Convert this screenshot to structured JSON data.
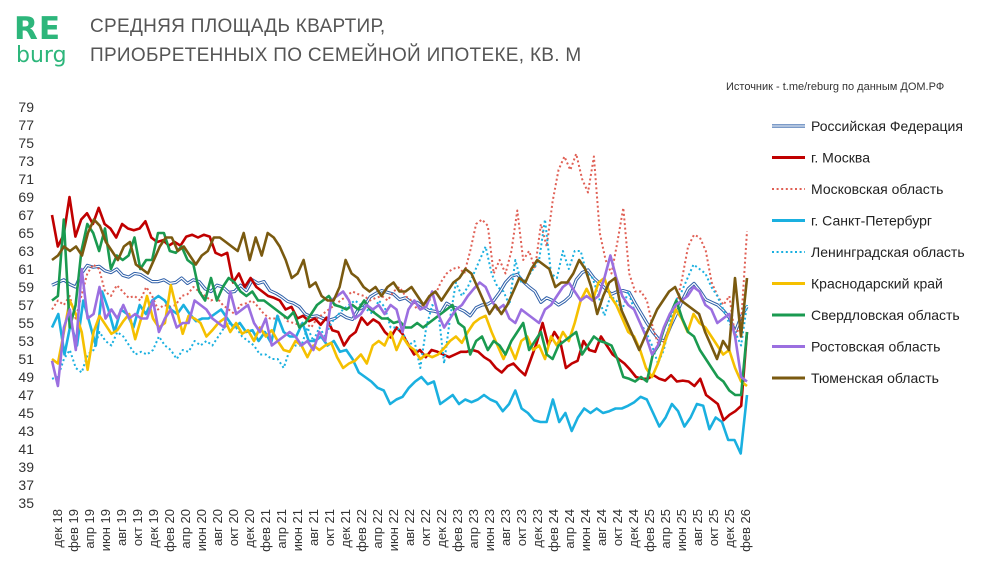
{
  "logo": {
    "line1": "RE",
    "line2": "burg"
  },
  "title": {
    "line1": "СРЕДНЯЯ ПЛОЩАДЬ КВАРТИР,",
    "line2": "ПРИОБРЕТЕННЫХ ПО СЕМЕЙНОЙ ИПОТЕКЕ, КВ. М"
  },
  "source": "Источник - t.me/reburg по данным ДОМ.РФ",
  "colors": {
    "brand": "#2db67b"
  },
  "chart_data": {
    "type": "line",
    "title": "СРЕДНЯЯ ПЛОЩАДЬ КВАРТИР, ПРИОБРЕТЕННЫХ ПО СЕМЕЙНОЙ ИПОТЕКЕ, КВ. М",
    "xlabel": "",
    "ylabel": "",
    "ylim": [
      35,
      79
    ],
    "y_ticks": [
      35,
      37,
      39,
      41,
      43,
      45,
      47,
      49,
      51,
      53,
      55,
      57,
      59,
      61,
      63,
      65,
      67,
      69,
      71,
      73,
      75,
      77,
      79
    ],
    "grid": false,
    "legend_position": "right",
    "x_labels": [
      "дек 18",
      "фев 19",
      "апр 19",
      "июн 19",
      "авг 19",
      "окт 19",
      "дек 19",
      "фев 20",
      "апр 20",
      "июн 20",
      "авг 20",
      "окт 20",
      "дек 20",
      "фев 21",
      "апр 21",
      "июн 21",
      "авг 21",
      "окт 21",
      "дек 21",
      "фев 22",
      "апр 22",
      "июн 22",
      "авг 22",
      "окт 22",
      "дек 22",
      "фев 23",
      "апр 23",
      "июн 23",
      "авг 23",
      "окт 23",
      "дек 23",
      "фев 24",
      "апр 24",
      "июн 24",
      "авг 24",
      "окт 24",
      "дек 24",
      "фев 25",
      "апр 25",
      "июн 25",
      "авг 25",
      "окт 25",
      "дек 25",
      "фев 26"
    ],
    "series": [
      {
        "name": "Российская Федерация",
        "color": "#2e5fa8",
        "style": "double",
        "values": [
          59.2,
          59.5,
          59.8,
          59.3,
          59.0,
          60.5,
          61.4,
          61.2,
          61.3,
          60.8,
          60.6,
          61.0,
          60.3,
          60.1,
          60.5,
          60.4,
          60.0,
          59.6,
          59.6,
          59.8,
          59.4,
          59.5,
          60.0,
          59.4,
          59.8,
          59.6,
          58.8,
          58.5,
          59.2,
          59.0,
          58.4,
          58.5,
          59.2,
          58.6,
          59.8,
          59.4,
          59.6,
          58.6,
          58.3,
          57.9,
          57.4,
          57.2,
          56.8,
          56.0,
          55.7,
          55.8,
          55.5,
          55.3,
          55.5,
          56.0,
          55.6,
          55.4,
          56.5,
          56.8,
          57.9,
          58.3,
          58.6,
          58.4,
          58.2,
          57.6,
          57.8,
          57.3,
          57.3,
          56.8,
          56.4,
          56.3,
          56.1,
          57.2,
          56.8,
          56.6,
          56.3,
          55.8,
          56.7,
          57.0,
          57.1,
          57.5,
          58.4,
          59.5,
          60.2,
          60.4,
          59.6,
          59.0,
          58.5,
          57.3,
          57.8,
          57.5,
          57.0,
          57.4,
          58.0,
          59.8,
          60.6,
          60.9,
          60.0,
          59.4,
          58.8,
          58.2,
          58.5,
          58.6,
          58.4,
          57.2,
          56.1,
          55.0,
          54.0,
          53.2,
          53.0,
          54.6,
          56.0,
          57.5,
          58.8,
          59.4,
          58.6,
          57.6,
          57.3,
          57.0,
          56.4,
          55.6,
          54.0,
          55.7,
          56.8
        ]
      },
      {
        "name": "г. Москва",
        "color": "#c00000",
        "style": "solid",
        "values": [
          67.0,
          63.5,
          64.8,
          69.0,
          64.6,
          66.5,
          67.2,
          66.0,
          67.8,
          66.0,
          65.5,
          64.5,
          66.0,
          65.5,
          65.3,
          65.5,
          66.3,
          64.5,
          64.0,
          64.2,
          63.6,
          64.0,
          63.6,
          64.6,
          64.8,
          64.5,
          64.8,
          64.6,
          62.8,
          62.5,
          62.8,
          59.5,
          60.5,
          59.0,
          60.0,
          59.0,
          58.5,
          58.0,
          57.8,
          57.5,
          56.5,
          56.8,
          55.5,
          55.8,
          55.2,
          55.5,
          54.8,
          55.6,
          54.2,
          54.0,
          52.5,
          53.5,
          54.0,
          55.6,
          54.8,
          55.4,
          55.0,
          54.0,
          53.4,
          54.5,
          53.8,
          52.6,
          51.5,
          52.0,
          51.2,
          52.0,
          51.8,
          51.5,
          51.2,
          51.5,
          51.8,
          51.8,
          52.0,
          51.8,
          51.2,
          50.8,
          50.0,
          49.5,
          50.2,
          50.5,
          49.8,
          49.2,
          51.0,
          52.8,
          55.0,
          52.5,
          54.0,
          53.0,
          50.0,
          50.5,
          50.8,
          53.0,
          52.0,
          51.8,
          53.5,
          52.5,
          51.5,
          51.0,
          50.5,
          49.8,
          49.0,
          48.8,
          48.8,
          49.2,
          48.8,
          48.6,
          49.2,
          48.5,
          48.6,
          48.5,
          48.0,
          48.8,
          47.0,
          46.5,
          46.0,
          44.2,
          44.8,
          45.2,
          45.8,
          54.0
        ]
      },
      {
        "name": "Московская область",
        "color": "#e06055",
        "style": "dotted",
        "values": [
          56.5,
          57.5,
          57.0,
          58.0,
          55.5,
          58.0,
          60.5,
          61.5,
          61.0,
          58.5,
          58.0,
          59.2,
          58.5,
          57.8,
          58.0,
          57.5,
          59.0,
          58.0,
          56.5,
          57.0,
          56.8,
          57.0,
          58.0,
          58.2,
          59.0,
          58.5,
          58.0,
          57.5,
          57.8,
          57.0,
          56.5,
          56.0,
          57.0,
          57.2,
          57.5,
          56.8,
          56.0,
          55.5,
          55.5,
          56.0,
          55.2,
          55.0,
          54.8,
          55.0,
          54.5,
          55.5,
          56.0,
          56.5,
          57.0,
          57.5,
          58.0,
          58.5,
          58.2,
          58.0,
          57.5,
          57.8,
          58.0,
          57.5,
          58.5,
          59.0,
          58.0,
          57.5,
          56.5,
          57.0,
          57.5,
          58.0,
          59.5,
          60.5,
          61.0,
          61.2,
          60.5,
          63.0,
          66.0,
          66.5,
          65.8,
          60.5,
          62.0,
          60.5,
          63.0,
          67.5,
          62.0,
          63.0,
          61.0,
          66.0,
          63.5,
          68.5,
          72.0,
          73.5,
          72.0,
          73.8,
          71.0,
          69.5,
          73.5,
          65.0,
          62.0,
          60.5,
          64.0,
          67.8,
          60.5,
          58.5,
          58.5,
          57.5,
          54.5,
          52.5,
          53.0,
          55.0,
          57.0,
          60.0,
          63.5,
          64.8,
          64.5,
          63.0,
          59.5,
          58.0,
          57.0,
          58.0,
          53.5,
          55.0,
          65.2
        ]
      },
      {
        "name": "г. Санкт-Петербург",
        "color": "#1ab0e0",
        "style": "solid",
        "values": [
          54.5,
          56.0,
          51.5,
          55.0,
          52.5,
          57.5,
          55.0,
          52.5,
          58.5,
          56.5,
          54.0,
          56.5,
          56.0,
          54.5,
          57.0,
          56.0,
          57.5,
          58.0,
          57.5,
          56.5,
          56.0,
          57.0,
          56.0,
          55.2,
          55.5,
          55.5,
          56.0,
          56.5,
          55.5,
          54.5,
          55.0,
          54.0,
          54.2,
          53.0,
          54.0,
          52.8,
          55.8,
          54.0,
          53.5,
          53.5,
          55.0,
          53.0,
          53.0,
          53.5,
          52.5,
          53.0,
          51.8,
          52.0,
          51.0,
          49.5,
          49.0,
          48.5,
          47.8,
          47.5,
          46.0,
          46.5,
          46.8,
          47.8,
          48.5,
          49.0,
          48.2,
          48.5,
          46.0,
          46.5,
          47.0,
          46.0,
          46.5,
          46.2,
          46.5,
          47.0,
          46.5,
          46.2,
          45.2,
          46.0,
          47.5,
          45.5,
          45.0,
          44.2,
          44.0,
          44.0,
          46.5,
          44.0,
          45.0,
          43.0,
          44.5,
          45.5,
          45.0,
          45.5,
          45.0,
          45.2,
          45.5,
          45.5,
          45.8,
          46.2,
          46.8,
          46.5,
          45.0,
          43.5,
          44.5,
          46.0,
          45.2,
          43.5,
          44.5,
          46.0,
          45.8,
          43.2,
          44.5,
          44.0,
          42.0,
          42.0,
          40.5,
          47.0
        ]
      },
      {
        "name": "Ленинградская область",
        "color": "#1ab0e0",
        "style": "dotted",
        "values": [
          48.8,
          49.0,
          51.0,
          52.0,
          50.0,
          49.5,
          51.5,
          52.0,
          54.0,
          53.0,
          52.5,
          54.0,
          53.5,
          52.5,
          51.5,
          51.8,
          51.5,
          52.0,
          53.5,
          52.5,
          52.0,
          51.0,
          52.0,
          51.8,
          53.0,
          52.5,
          53.0,
          52.5,
          53.5,
          54.5,
          55.0,
          54.5,
          53.5,
          53.0,
          52.5,
          51.5,
          51.5,
          51.0,
          51.0,
          50.0,
          52.0,
          52.5,
          52.5,
          54.5,
          53.0,
          54.5,
          53.5,
          55.0,
          55.8,
          56.5,
          57.0,
          57.5,
          57.0,
          56.5,
          56.0,
          57.5,
          56.8,
          54.5,
          54.5,
          54.0,
          52.5,
          53.0,
          50.0,
          54.5,
          57.0,
          56.5,
          50.5,
          55.5,
          59.5,
          58.0,
          59.0,
          60.5,
          62.0,
          63.5,
          60.5,
          59.0,
          58.5,
          57.0,
          62.0,
          59.5,
          60.0,
          61.0,
          62.0,
          66.5,
          60.5,
          60.0,
          63.0,
          61.0,
          63.0,
          63.0,
          60.5,
          60.0,
          58.0,
          55.8,
          58.0,
          57.5,
          56.5,
          58.5,
          56.5,
          55.0,
          54.0,
          52.5,
          50.5,
          52.0,
          55.0,
          57.5,
          58.5,
          60.0,
          61.5,
          61.0,
          60.5,
          59.0,
          58.0,
          56.5,
          55.0,
          54.0,
          52.5,
          57.0
        ]
      },
      {
        "name": "Краснодарский край",
        "color": "#f5c000",
        "style": "solid",
        "values": [
          51.0,
          50.5,
          54.0,
          57.5,
          56.0,
          54.0,
          49.8,
          54.0,
          55.8,
          54.8,
          53.8,
          54.2,
          55.2,
          56.0,
          53.2,
          55.5,
          58.0,
          55.5,
          54.5,
          55.0,
          59.2,
          56.5,
          53.8,
          55.8,
          55.5,
          55.0,
          53.5,
          54.2,
          55.0,
          55.5,
          54.0,
          55.0,
          53.8,
          54.2,
          53.0,
          54.5,
          53.5,
          54.2,
          53.0,
          52.0,
          51.8,
          53.0,
          52.5,
          51.2,
          52.5,
          52.0,
          52.5,
          52.8,
          51.2,
          50.0,
          50.5,
          50.8,
          51.5,
          50.5,
          52.5,
          53.0,
          52.5,
          54.0,
          52.0,
          53.5,
          52.5,
          52.0,
          51.0,
          51.5,
          51.2,
          51.5,
          52.2,
          53.0,
          53.5,
          52.8,
          54.0,
          55.0,
          55.5,
          55.8,
          54.0,
          52.5,
          51.0,
          52.5,
          51.0,
          53.0,
          53.5,
          52.0,
          52.5,
          51.0,
          53.5,
          52.5,
          54.0,
          53.0,
          55.0,
          57.5,
          58.8,
          57.5,
          59.5,
          60.0,
          58.0,
          57.0,
          55.5,
          54.0,
          53.5,
          52.0,
          50.0,
          49.0,
          50.5,
          52.5,
          54.5,
          56.5,
          55.5,
          54.0,
          56.0,
          55.0,
          54.5,
          53.5,
          52.5,
          51.5,
          52.0,
          50.0,
          48.5,
          48.0
        ]
      },
      {
        "name": "Свердловская область",
        "color": "#1a9a50",
        "style": "solid",
        "values": [
          57.5,
          58.0,
          66.5,
          54.5,
          57.0,
          63.0,
          66.0,
          65.0,
          63.0,
          65.5,
          61.0,
          62.5,
          62.0,
          62.5,
          64.5,
          61.0,
          62.0,
          62.0,
          65.0,
          65.0,
          63.0,
          62.8,
          63.5,
          62.0,
          61.5,
          58.5,
          57.5,
          60.0,
          57.5,
          59.0,
          60.0,
          59.5,
          58.5,
          58.0,
          58.5,
          57.5,
          57.5,
          57.0,
          56.5,
          56.0,
          55.5,
          56.2,
          54.5,
          55.0,
          56.0,
          57.0,
          57.5,
          58.0,
          57.0,
          56.8,
          56.5,
          57.0,
          56.5,
          57.5,
          56.5,
          56.0,
          55.5,
          55.5,
          55.0,
          55.2,
          54.5,
          54.5,
          55.0,
          54.5,
          55.0,
          55.5,
          56.0,
          56.5,
          57.0,
          55.0,
          54.5,
          51.5,
          53.0,
          53.5,
          52.0,
          53.0,
          52.5,
          51.5,
          53.0,
          54.0,
          55.0,
          52.0,
          53.0,
          54.0,
          51.5,
          51.0,
          52.5,
          53.0,
          53.5,
          54.0,
          51.5,
          52.5,
          53.5,
          53.0,
          52.8,
          52.5,
          51.0,
          49.0,
          48.8,
          48.5,
          49.0,
          48.5,
          51.5,
          52.5,
          54.5,
          56.0,
          57.5,
          55.5,
          54.0,
          53.5,
          52.0,
          51.0,
          50.0,
          49.0,
          48.5,
          47.5,
          47.0,
          47.0,
          54.0
        ]
      },
      {
        "name": "Ростовская область",
        "color": "#9b6fe0",
        "style": "solid",
        "values": [
          50.8,
          48.0,
          54.5,
          56.5,
          52.0,
          61.0,
          55.5,
          56.0,
          59.0,
          55.5,
          56.5,
          55.5,
          57.0,
          55.5,
          56.0,
          55.5,
          55.5,
          57.5,
          54.0,
          55.5,
          56.5,
          54.5,
          55.0,
          55.0,
          57.5,
          57.0,
          56.5,
          55.5,
          55.0,
          54.5,
          58.5,
          56.0,
          56.5,
          57.0,
          55.0,
          54.0,
          55.5,
          52.5,
          53.0,
          53.5,
          54.0,
          53.5,
          52.5,
          53.0,
          52.0,
          54.0,
          53.0,
          57.5,
          58.0,
          58.5,
          57.5,
          55.5,
          56.0,
          57.0,
          56.5,
          57.0,
          56.0,
          57.0,
          56.5,
          54.0,
          56.5,
          57.5,
          56.5,
          56.8,
          58.5,
          56.0,
          54.5,
          55.5,
          56.5,
          57.0,
          58.0,
          58.8,
          59.5,
          59.0,
          57.5,
          56.5,
          57.0,
          55.5,
          55.0,
          56.5,
          56.0,
          55.5,
          55.0,
          56.5,
          57.0,
          58.0,
          59.0,
          59.5,
          58.5,
          57.5,
          58.0,
          57.5,
          58.0,
          60.0,
          62.5,
          60.0,
          58.0,
          57.0,
          56.5,
          55.0,
          53.5,
          51.5,
          52.5,
          54.5,
          56.0,
          57.0,
          57.5,
          58.0,
          59.0,
          58.5,
          57.0,
          56.5,
          55.0,
          55.5,
          56.0,
          53.5,
          49.0,
          48.5
        ]
      },
      {
        "name": "Тюменская область",
        "color": "#7a5a10",
        "style": "solid",
        "values": [
          62.0,
          62.5,
          63.5,
          63.0,
          63.5,
          62.5,
          65.0,
          66.5,
          65.8,
          64.0,
          63.0,
          62.0,
          63.5,
          64.0,
          61.5,
          61.0,
          60.5,
          62.0,
          63.5,
          64.5,
          64.5,
          63.0,
          63.5,
          62.5,
          61.5,
          62.5,
          63.0,
          64.5,
          64.5,
          64.0,
          63.5,
          63.0,
          65.0,
          62.0,
          64.5,
          62.5,
          65.0,
          64.5,
          63.5,
          62.0,
          60.0,
          60.5,
          62.0,
          59.0,
          59.5,
          58.0,
          57.5,
          57.5,
          59.0,
          62.0,
          60.5,
          60.0,
          59.0,
          58.5,
          59.0,
          58.0,
          59.0,
          59.5,
          58.5,
          58.5,
          59.0,
          58.0,
          57.0,
          58.0,
          58.5,
          57.5,
          58.5,
          59.5,
          60.0,
          61.0,
          60.5,
          59.0,
          57.5,
          56.0,
          57.0,
          56.0,
          57.0,
          58.5,
          60.0,
          59.5,
          61.0,
          62.0,
          61.5,
          61.0,
          59.0,
          59.5,
          59.5,
          60.5,
          62.0,
          61.0,
          59.0,
          56.0,
          58.0,
          59.5,
          60.0,
          56.5,
          55.0,
          53.5,
          52.0,
          53.5,
          55.0,
          56.5,
          57.5,
          58.5,
          59.0,
          57.5,
          57.0,
          56.5,
          56.0,
          54.0,
          52.5,
          51.0,
          53.0,
          52.0,
          60.0,
          53.5,
          60.0
        ]
      }
    ]
  }
}
